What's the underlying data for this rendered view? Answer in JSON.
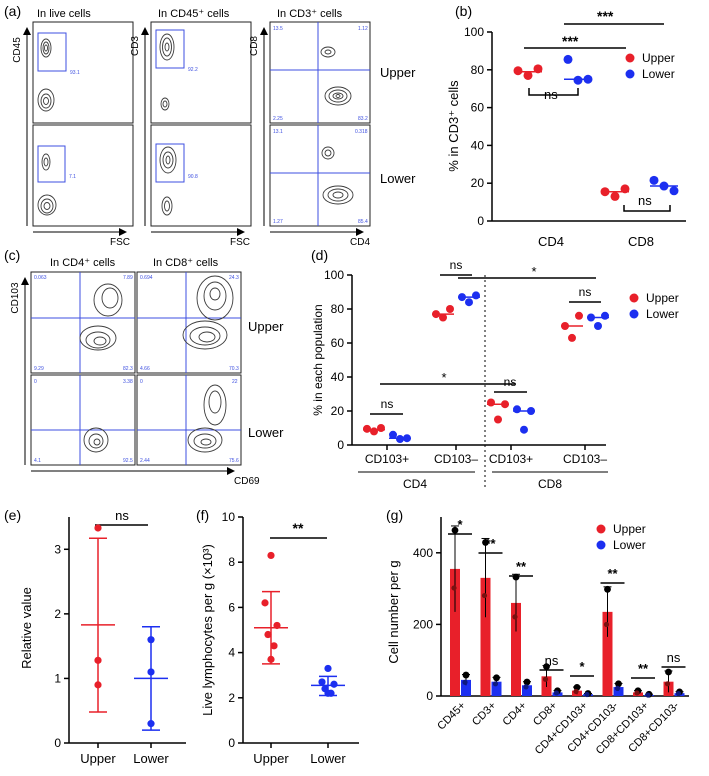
{
  "labels": {
    "a": "(a)",
    "b": "(b)",
    "c": "(c)",
    "d": "(d)",
    "e": "(e)",
    "f": "(f)",
    "g": "(g)"
  },
  "colors": {
    "upper": "#e8202a",
    "lower": "#1c2ff0",
    "gate": "#3d4fe0",
    "contour": "#3c3c3c"
  },
  "flow_a": {
    "panels": [
      {
        "title": "In live cells",
        "ylabel": "CD45",
        "xlabel": "FSC",
        "values": [
          "93.1",
          "7.1"
        ]
      },
      {
        "title": "In CD45⁺ cells",
        "ylabel": "CD3",
        "xlabel": "FSC",
        "values": [
          "92.2",
          "90.8"
        ]
      },
      {
        "title": "In CD3⁺ cells",
        "ylabel": "CD8",
        "xlabel": "CD4",
        "quadrants_upper": [
          "13.5",
          "1.12",
          "2.25",
          "83.2"
        ],
        "quadrants_lower": [
          "13.1",
          "0.318",
          "1.27",
          "85.4"
        ]
      }
    ],
    "row_labels": [
      "Upper",
      "Lower"
    ]
  },
  "flow_c": {
    "panels": [
      {
        "title": "In CD4⁺ cells",
        "quadrants_upper": [
          "0.063",
          "7.89",
          "9.29",
          "82.3"
        ],
        "quadrants_lower": [
          "0",
          "3.38",
          "4.1",
          "92.5"
        ]
      },
      {
        "title": "In CD8⁺ cells",
        "quadrants_upper": [
          "0.694",
          "24.3",
          "4.66",
          "70.3"
        ],
        "quadrants_lower": [
          "0",
          "22",
          "2.44",
          "75.6"
        ]
      }
    ],
    "ylabel": "CD103",
    "xlabel": "CD69",
    "row_labels": [
      "Upper",
      "Lower"
    ]
  },
  "chart_data": [
    {
      "id": "b",
      "type": "scatter",
      "ylabel": "% in CD3⁺ cells",
      "ylim": [
        0,
        100
      ],
      "yticks": [
        "0",
        "20",
        "40",
        "60",
        "80",
        "100"
      ],
      "categories": [
        "CD4",
        "CD8"
      ],
      "legend": [
        "Upper",
        "Lower"
      ],
      "series": [
        {
          "name": "Upper",
          "points": [
            [
              0,
              79.5
            ],
            [
              0,
              77
            ],
            [
              0,
              80.5
            ],
            [
              1,
              15.5
            ],
            [
              1,
              13
            ],
            [
              1,
              17
            ]
          ],
          "means": [
            79,
            15.5
          ]
        },
        {
          "name": "Lower",
          "points": [
            [
              0,
              85.5
            ],
            [
              0,
              74.5
            ],
            [
              0,
              75
            ],
            [
              1,
              21.5
            ],
            [
              1,
              18.5
            ],
            [
              1,
              16
            ]
          ],
          "means": [
            75,
            18.5
          ]
        }
      ],
      "annotations": [
        {
          "text": "ns",
          "x": 0,
          "y": 63
        },
        {
          "text": "ns",
          "x": 1,
          "y": 13
        },
        {
          "text": "***",
          "x": 0.6,
          "y": 90
        },
        {
          "text": "***",
          "x": 0.5,
          "y": 98
        }
      ]
    },
    {
      "id": "d",
      "type": "scatter",
      "ylabel": "%  in each population",
      "ylim": [
        0,
        100
      ],
      "yticks": [
        "0",
        "20",
        "40",
        "60",
        "80",
        "100"
      ],
      "categories": [
        "CD103+",
        "CD103–",
        "CD103+",
        "CD103–"
      ],
      "groups": [
        "CD4",
        "CD8"
      ],
      "legend": [
        "Upper",
        "Lower"
      ],
      "series": [
        {
          "name": "Upper",
          "points": [
            [
              0,
              9.5
            ],
            [
              0,
              8
            ],
            [
              0,
              10
            ],
            [
              1,
              77
            ],
            [
              1,
              75
            ],
            [
              1,
              80
            ],
            [
              2,
              25
            ],
            [
              2,
              15
            ],
            [
              2,
              24
            ],
            [
              3,
              70
            ],
            [
              3,
              63
            ],
            [
              3,
              76
            ]
          ],
          "means": [
            9,
            77,
            24,
            70
          ]
        },
        {
          "name": "Lower",
          "points": [
            [
              0,
              6
            ],
            [
              0,
              3.5
            ],
            [
              0,
              4
            ],
            [
              1,
              87
            ],
            [
              1,
              84
            ],
            [
              1,
              88
            ],
            [
              2,
              21
            ],
            [
              2,
              9
            ],
            [
              2,
              20
            ],
            [
              3,
              75
            ],
            [
              3,
              70
            ],
            [
              3,
              76
            ]
          ],
          "means": [
            4,
            87,
            20,
            75
          ]
        }
      ],
      "annotations": [
        {
          "text": "ns",
          "x": 0,
          "y": 24
        },
        {
          "text": "ns",
          "x": 1,
          "y": 100
        },
        {
          "text": "ns",
          "x": 2,
          "y": 31
        },
        {
          "text": "ns",
          "x": 3,
          "y": 84
        },
        {
          "text": "*",
          "x": 1.3,
          "y": 97
        },
        {
          "text": "*",
          "x": 1.3,
          "y": 41
        }
      ]
    },
    {
      "id": "e",
      "type": "scatter",
      "ylabel": "Relative value",
      "ylim": [
        0,
        3.5
      ],
      "yticks": [
        "0",
        "1",
        "2",
        "3"
      ],
      "categories": [
        "Upper",
        "Lower"
      ],
      "series": [
        {
          "name": "Upper",
          "points": [
            [
              0,
              3.33
            ],
            [
              0,
              1.28
            ],
            [
              0,
              0.9
            ]
          ],
          "mean": 1.83,
          "sd_range": [
            0.48,
            3.17
          ]
        },
        {
          "name": "Lower",
          "points": [
            [
              1,
              1.6
            ],
            [
              1,
              1.1
            ],
            [
              1,
              0.3
            ]
          ],
          "mean": 1.0,
          "sd_range": [
            0.2,
            1.8
          ]
        }
      ],
      "annotations": [
        {
          "text": "ns",
          "x": 0.5,
          "y": 3.4
        }
      ]
    },
    {
      "id": "f",
      "type": "scatter",
      "ylabel": "Live lymphocytes per g (×10³)",
      "ylim": [
        0,
        10
      ],
      "yticks": [
        "0",
        "2",
        "4",
        "6",
        "8",
        "10"
      ],
      "categories": [
        "Upper",
        "Lower"
      ],
      "series": [
        {
          "name": "Upper",
          "points": [
            [
              0,
              8.3
            ],
            [
              0,
              6.2
            ],
            [
              0,
              5.2
            ],
            [
              0,
              4.8
            ],
            [
              0,
              4.3
            ],
            [
              0,
              3.7
            ]
          ],
          "mean": 5.1,
          "sd_range": [
            3.5,
            6.7
          ]
        },
        {
          "name": "Lower",
          "points": [
            [
              1,
              3.3
            ],
            [
              1,
              2.7
            ],
            [
              1,
              2.6
            ],
            [
              1,
              2.4
            ],
            [
              1,
              2.2
            ],
            [
              1,
              2.2
            ]
          ],
          "mean": 2.55,
          "sd_range": [
            2.1,
            2.95
          ]
        }
      ],
      "annotations": [
        {
          "text": "**",
          "x": 0.5,
          "y": 8.8
        }
      ]
    },
    {
      "id": "g",
      "type": "bar",
      "ylabel": "Cell number per g",
      "ylim": [
        0,
        500
      ],
      "yticks": [
        "0",
        "200",
        "400"
      ],
      "categories": [
        "CD45+",
        "CD3+",
        "CD4+",
        "CD8+",
        "CD4+CD103+",
        "CD4+CD103-",
        "CD8+CD103+",
        "CD8+CD103-"
      ],
      "legend": [
        "Upper",
        "Lower"
      ],
      "series": [
        {
          "name": "Upper",
          "values": [
            355,
            330,
            260,
            55,
            15,
            235,
            10,
            40
          ],
          "errors": [
            120,
            110,
            80,
            30,
            10,
            70,
            5,
            30
          ]
        },
        {
          "name": "Lower",
          "values": [
            45,
            40,
            30,
            10,
            5,
            25,
            3,
            8
          ],
          "errors": [
            15,
            12,
            10,
            5,
            2,
            10,
            2,
            4
          ]
        }
      ],
      "significance": [
        "*",
        "**",
        "**",
        "ns",
        "*",
        "**",
        "**",
        "ns"
      ]
    }
  ]
}
